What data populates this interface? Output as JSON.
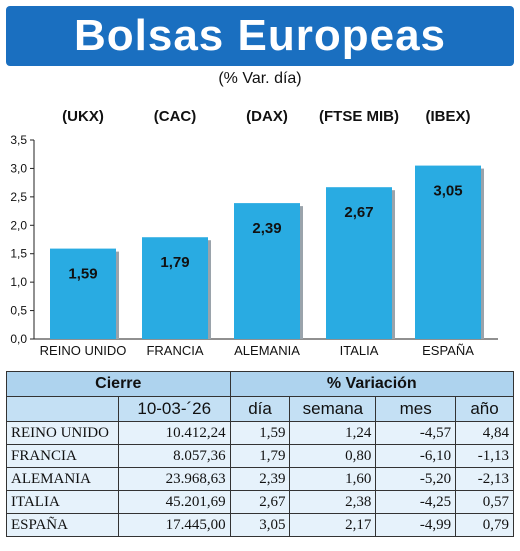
{
  "title": "Bolsas Europeas",
  "subtitle": "(% Var. día)",
  "colors": {
    "banner": "#1a6fc0",
    "bar": "#29abe2",
    "header_dark": "#aed3ee",
    "header_light": "#c4e0f4",
    "row": "#e6f2fb"
  },
  "chart_data": {
    "type": "bar",
    "categories": [
      "REINO UNIDO",
      "FRANCIA",
      "ALEMANIA",
      "ITALIA",
      "ESPAÑA"
    ],
    "index_labels": [
      "(UKX)",
      "(CAC)",
      "(DAX)",
      "(FTSE MIB)",
      "(IBEX)"
    ],
    "values": [
      1.59,
      1.79,
      2.39,
      2.67,
      3.05
    ],
    "value_labels": [
      "1,59",
      "1,79",
      "2,39",
      "2,67",
      "3,05"
    ],
    "ylim": [
      0,
      3.5
    ],
    "yticks": [
      0,
      0.5,
      1.0,
      1.5,
      2.0,
      2.5,
      3.0,
      3.5
    ],
    "ytick_labels": [
      "0,0",
      "0,5",
      "1,0",
      "1,5",
      "2,0",
      "2,5",
      "3,0",
      "3,5"
    ],
    "grid": false
  },
  "table": {
    "header_cierre": "Cierre",
    "header_variacion": "% Variación",
    "date_label": "10-03-´26",
    "col_labels": [
      "día",
      "semana",
      "mes",
      "año"
    ],
    "rows": [
      {
        "name": "REINO UNIDO",
        "cierre": "10.412,24",
        "dia": "1,59",
        "semana": "1,24",
        "mes": "-4,57",
        "anio": "4,84"
      },
      {
        "name": "FRANCIA",
        "cierre": "8.057,36",
        "dia": "1,79",
        "semana": "0,80",
        "mes": "-6,10",
        "anio": "-1,13"
      },
      {
        "name": "ALEMANIA",
        "cierre": "23.968,63",
        "dia": "2,39",
        "semana": "1,60",
        "mes": "-5,20",
        "anio": "-2,13"
      },
      {
        "name": "ITALIA",
        "cierre": "45.201,69",
        "dia": "2,67",
        "semana": "2,38",
        "mes": "-4,25",
        "anio": "0,57"
      },
      {
        "name": "ESPAÑA",
        "cierre": "17.445,00",
        "dia": "3,05",
        "semana": "2,17",
        "mes": "-4,99",
        "anio": "0,79"
      }
    ]
  }
}
